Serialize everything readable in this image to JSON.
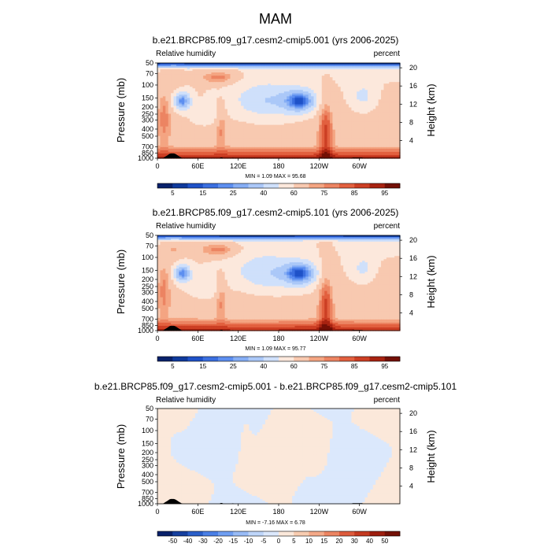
{
  "figure": {
    "season": "MAM"
  },
  "colors": {
    "abs_scale": [
      "#08216b",
      "#0f3a9c",
      "#1f52c8",
      "#3b6fe0",
      "#5d8ff0",
      "#86aef5",
      "#abc8f8",
      "#cfe0fb",
      "#fce8dc",
      "#f8c9b0",
      "#f4a582",
      "#ec8462",
      "#e2603f",
      "#cc3f24",
      "#a82311",
      "#731006"
    ],
    "diff_scale": [
      "#08216b",
      "#16409f",
      "#2a5fc9",
      "#4a7fe6",
      "#6f9ef2",
      "#98bbf6",
      "#bed5f9",
      "#dbe8fc",
      "#fbe8da",
      "#f8ccb0",
      "#f4a988",
      "#ec8462",
      "#dd5b3c",
      "#c43a20",
      "#9d1e0e",
      "#731006"
    ],
    "topo": "#000000"
  },
  "chart_data": [
    {
      "type": "heatmap",
      "title": "b.e21.BRCP85.f09_g17.cesm2-cmip5.001 (yrs 2006-2025)",
      "left_label": "Relative humidity",
      "right_label": "percent",
      "ylabel": "Pressure (mb)",
      "y2label": "Height (km)",
      "x_ticks": [
        "0",
        "60E",
        "120E",
        "180",
        "120W",
        "60W"
      ],
      "y_ticks": [
        "50",
        "70",
        "100",
        "150",
        "200",
        "250",
        "300",
        "400",
        "500",
        "700",
        "850",
        "1000"
      ],
      "y2_ticks": [
        "20",
        "16",
        "12",
        "8",
        "4"
      ],
      "stats": "MIN =    1.09   MAX =   95.68",
      "colorbar_labels": [
        "5",
        "15",
        "25",
        "40",
        "60",
        "75",
        "85",
        "95"
      ],
      "min": 1.09,
      "max": 95.68
    },
    {
      "type": "heatmap",
      "title": "b.e21.BRCP85.f09_g17.cesm2-cmip5.101 (yrs 2006-2025)",
      "left_label": "Relative humidity",
      "right_label": "percent",
      "ylabel": "Pressure (mb)",
      "y2label": "Height (km)",
      "x_ticks": [
        "0",
        "60E",
        "120E",
        "180",
        "120W",
        "60W"
      ],
      "y_ticks": [
        "50",
        "70",
        "100",
        "150",
        "200",
        "250",
        "300",
        "400",
        "500",
        "700",
        "850",
        "1000"
      ],
      "y2_ticks": [
        "20",
        "16",
        "12",
        "8",
        "4"
      ],
      "stats": "MIN =    1.09   MAX =   95.77",
      "colorbar_labels": [
        "5",
        "15",
        "25",
        "40",
        "60",
        "75",
        "85",
        "95"
      ],
      "min": 1.09,
      "max": 95.77
    },
    {
      "type": "heatmap",
      "title": "b.e21.BRCP85.f09_g17.cesm2-cmip5.001 - b.e21.BRCP85.f09_g17.cesm2-cmip5.101",
      "left_label": "Relative humidity",
      "right_label": "percent",
      "ylabel": "Pressure (mb)",
      "y2label": "Height (km)",
      "x_ticks": [
        "0",
        "60E",
        "120E",
        "180",
        "120W",
        "60W"
      ],
      "y_ticks": [
        "50",
        "70",
        "100",
        "150",
        "200",
        "250",
        "300",
        "400",
        "500",
        "700",
        "850",
        "1000"
      ],
      "y2_ticks": [
        "20",
        "16",
        "12",
        "8",
        "4"
      ],
      "stats": "MIN =   -7.16   MAX =    6.78",
      "colorbar_labels": [
        "-50",
        "-40",
        "-30",
        "-20",
        "-15",
        "-10",
        "-5",
        "0",
        "5",
        "10",
        "15",
        "20",
        "30",
        "40",
        "50"
      ],
      "min": -7.16,
      "max": 6.78
    }
  ]
}
